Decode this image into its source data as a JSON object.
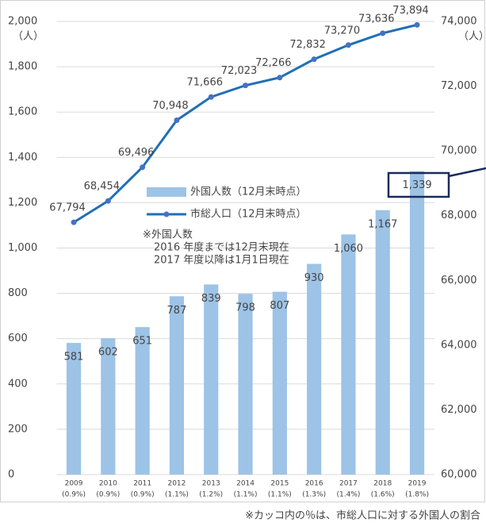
{
  "chart_data": {
    "type": "bar_line",
    "categories": [
      "2009",
      "2010",
      "2011",
      "2012",
      "2013",
      "2014",
      "2015",
      "2016",
      "2017",
      "2018",
      "2019"
    ],
    "category_shares": [
      "(0.9%)",
      "(0.9%)",
      "(0.9%)",
      "(1.1%)",
      "(1.2%)",
      "(1.1%)",
      "(1.1%)",
      "(1.3%)",
      "(1.4%)",
      "(1.6%)",
      "(1.8%)"
    ],
    "series": [
      {
        "name": "外国人数（12月末時点）",
        "type": "bar",
        "color": "#9dc3e6",
        "values": [
          581,
          602,
          651,
          787,
          839,
          798,
          807,
          930,
          1060,
          1167,
          1339
        ],
        "value_labels": [
          "581",
          "602",
          "651",
          "787",
          "839",
          "798",
          "807",
          "930",
          "1,060",
          "1,167",
          "1,339"
        ]
      },
      {
        "name": "市総人口（12月末時点）",
        "type": "line",
        "axis": "y2",
        "color": "#1f6fb5",
        "marker_color": "#4472c4",
        "values": [
          67794,
          68454,
          69496,
          70948,
          71666,
          72023,
          72266,
          72832,
          73270,
          73636,
          73894
        ],
        "value_labels": [
          "67,794",
          "68,454",
          "69,496",
          "70,948",
          "71,666",
          "72,023",
          "72,266",
          "72,832",
          "73,270",
          "73,636",
          "73,894"
        ]
      }
    ],
    "ylim": [
      0,
      2000
    ],
    "yticks": [
      0,
      200,
      400,
      600,
      800,
      {
        "value": 1000,
        "label": "1,000"
      },
      {
        "value": 1200,
        "label": "1,200"
      },
      {
        "value": 1400,
        "label": "1,400"
      },
      {
        "value": 1600,
        "label": "1,600"
      },
      {
        "value": 1800,
        "label": "1,800"
      },
      {
        "value": 2000,
        "label": "2,000"
      }
    ],
    "y_unit": "（人）",
    "y2lim": [
      60000,
      74000
    ],
    "y2ticks": [
      {
        "value": 60000,
        "label": "60,000"
      },
      {
        "value": 62000,
        "label": "62,000"
      },
      {
        "value": 64000,
        "label": "64,000"
      },
      {
        "value": 66000,
        "label": "66,000"
      },
      {
        "value": 68000,
        "label": "68,000"
      },
      {
        "value": 70000,
        "label": "70,000"
      },
      {
        "value": 72000,
        "label": "72,000"
      },
      {
        "value": 74000,
        "label": "74,000"
      }
    ],
    "y2_unit": "（人）",
    "grid": true,
    "note": [
      "※外国人数",
      "2016 年度までは12月末現在",
      "2017 年度以降は1月1日現在"
    ],
    "footnote": "※カッコ内の％は、市総人口に対する外国人の割合"
  }
}
